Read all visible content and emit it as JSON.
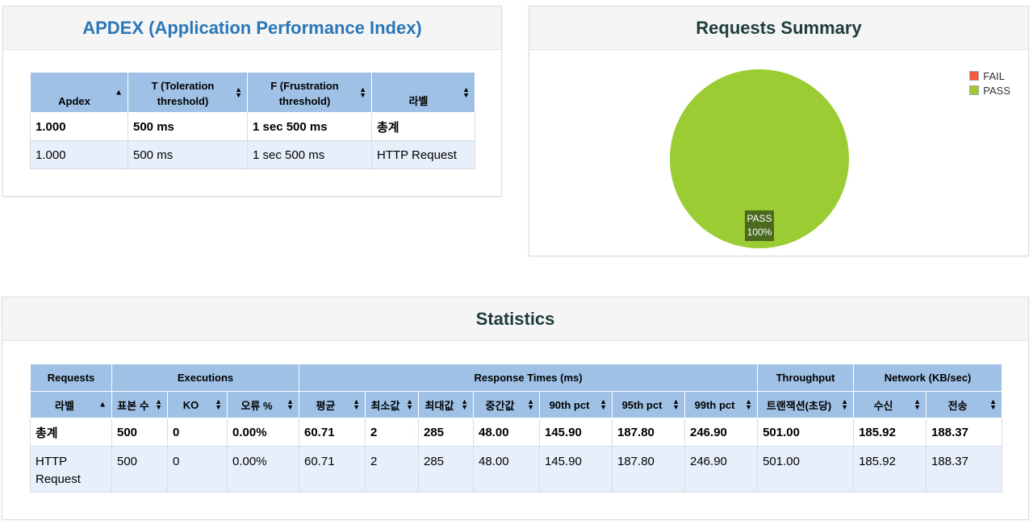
{
  "apdex": {
    "title": "APDEX (Application Performance Index)",
    "headers": [
      "Apdex",
      "T (Toleration threshold)",
      "F (Frustration threshold)",
      "라벨"
    ],
    "header_lines": {
      "t": [
        "T (Toleration",
        "threshold)"
      ],
      "f": [
        "F (Frustration",
        "threshold)"
      ]
    },
    "rows": [
      {
        "apdex": "1.000",
        "t": "500 ms",
        "f": "1 sec 500 ms",
        "label": "총계"
      },
      {
        "apdex": "1.000",
        "t": "500 ms",
        "f": "1 sec 500 ms",
        "label": "HTTP Request"
      }
    ]
  },
  "summary": {
    "title": "Requests Summary",
    "legend": [
      {
        "label": "FAIL",
        "color": "#f4593c"
      },
      {
        "label": "PASS",
        "color": "#9ccc33"
      }
    ],
    "slice_label": "PASS",
    "slice_percent": "100%",
    "pass_fraction": 1.0
  },
  "statistics": {
    "title": "Statistics",
    "groups": [
      "Requests",
      "Executions",
      "Response Times (ms)",
      "Throughput",
      "Network (KB/sec)"
    ],
    "columns": [
      "라벨",
      "표본 수",
      "KO",
      "오류 %",
      "평균",
      "최소값",
      "최대값",
      "중간값",
      "90th pct",
      "95th pct",
      "99th pct",
      "트랜잭션(초당)",
      "수신",
      "전송"
    ],
    "total": [
      "총계",
      "500",
      "0",
      "0.00%",
      "60.71",
      "2",
      "285",
      "48.00",
      "145.90",
      "187.80",
      "246.90",
      "501.00",
      "185.92",
      "188.37"
    ],
    "row": [
      "HTTP Request",
      "500",
      "0",
      "0.00%",
      "60.71",
      "2",
      "285",
      "48.00",
      "145.90",
      "187.80",
      "246.90",
      "501.00",
      "185.92",
      "188.37"
    ]
  },
  "colors": {
    "pass": "#9ccc33",
    "fail": "#f4593c",
    "header": "#9fc1e6",
    "title_blue": "#2a76b6"
  }
}
